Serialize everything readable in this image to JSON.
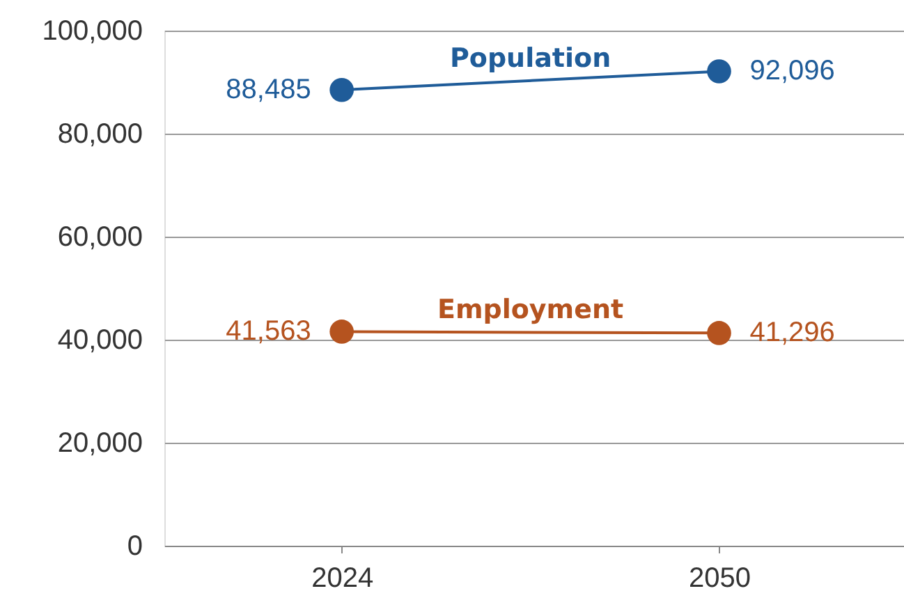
{
  "chart_data": {
    "type": "line",
    "categories": [
      "2024",
      "2050"
    ],
    "series": [
      {
        "name": "Population",
        "color": "#1f5c99",
        "values": [
          88485,
          92096
        ],
        "value_labels": [
          "88,485",
          "92,096"
        ]
      },
      {
        "name": "Employment",
        "color": "#b5531f",
        "values": [
          41563,
          41296
        ],
        "value_labels": [
          "41,563",
          "41,296"
        ]
      }
    ],
    "ylim": [
      0,
      100000
    ],
    "yticks": [
      0,
      {
        "value": 20000,
        "label": "20,000"
      },
      {
        "value": 40000,
        "label": "40,000"
      },
      {
        "value": 60000,
        "label": "60,000"
      },
      {
        "value": 80000,
        "label": "80,000"
      },
      {
        "value": 100000,
        "label": "100,000"
      }
    ],
    "grid": "y",
    "marker": "circle",
    "line_style": "solid"
  }
}
